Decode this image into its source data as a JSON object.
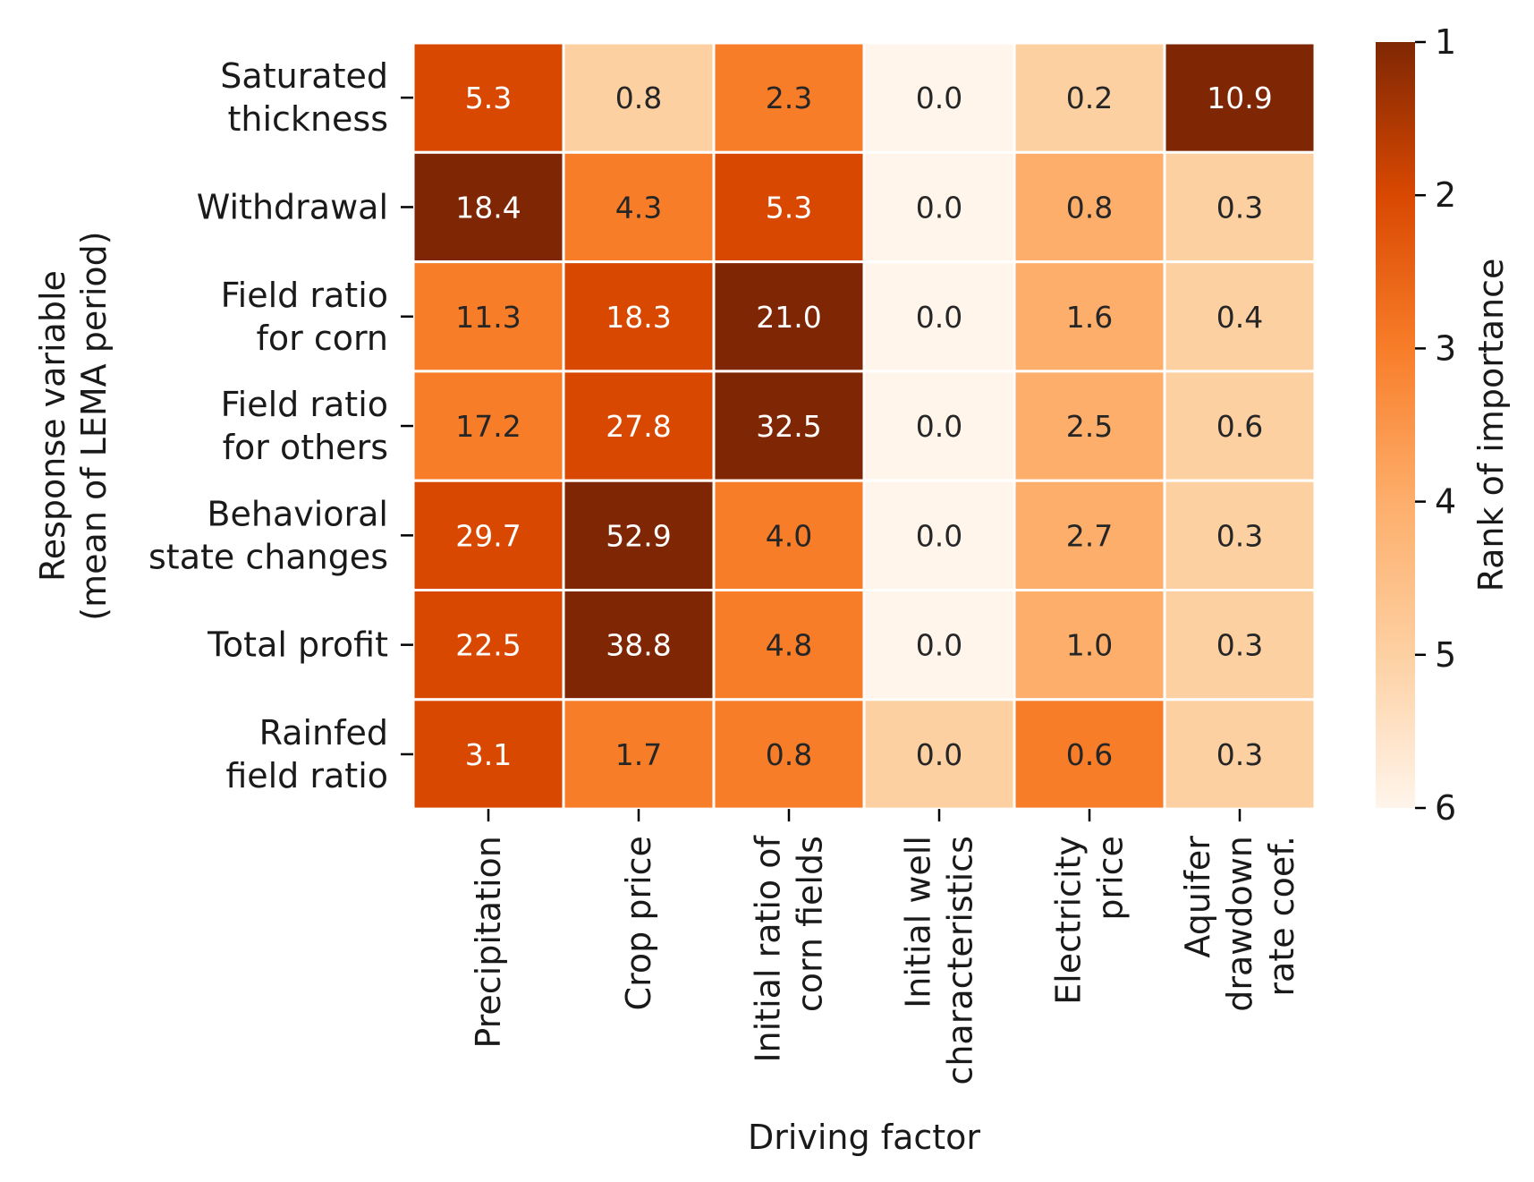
{
  "chart_data": {
    "type": "heatmap",
    "xlabel": "Driving factor",
    "ylabel": [
      "Response variable",
      "(mean of LEMA period)"
    ],
    "columns": [
      [
        "Precipitation"
      ],
      [
        "Crop price"
      ],
      [
        "Initial ratio of",
        "corn fields"
      ],
      [
        "Initial well",
        "characteristics"
      ],
      [
        "Electricity",
        "price"
      ],
      [
        "Aquifer",
        "drawdown",
        "rate coef."
      ]
    ],
    "rows": [
      [
        "Saturated",
        "thickness"
      ],
      [
        "Withdrawal"
      ],
      [
        "Field ratio",
        "for corn"
      ],
      [
        "Field ratio",
        "for others"
      ],
      [
        "Behavioral",
        "state changes"
      ],
      [
        "Total profit"
      ],
      [
        "Rainfed",
        "field ratio"
      ]
    ],
    "values": [
      [
        "5.3",
        "0.8",
        "2.3",
        "0.0",
        "0.2",
        "10.9"
      ],
      [
        "18.4",
        "4.3",
        "5.3",
        "0.0",
        "0.8",
        "0.3"
      ],
      [
        "11.3",
        "18.3",
        "21.0",
        "0.0",
        "1.6",
        "0.4"
      ],
      [
        "17.2",
        "27.8",
        "32.5",
        "0.0",
        "2.5",
        "0.6"
      ],
      [
        "29.7",
        "52.9",
        "4.0",
        "0.0",
        "2.7",
        "0.3"
      ],
      [
        "22.5",
        "38.8",
        "4.8",
        "0.0",
        "1.0",
        "0.3"
      ],
      [
        "3.1",
        "1.7",
        "0.8",
        "0.0",
        "0.6",
        "0.3"
      ]
    ],
    "rank": [
      [
        2,
        5,
        3,
        6,
        5,
        1
      ],
      [
        1,
        3,
        2,
        6,
        4,
        5
      ],
      [
        3,
        2,
        1,
        6,
        4,
        5
      ],
      [
        3,
        2,
        1,
        6,
        4,
        5
      ],
      [
        2,
        1,
        3,
        6,
        4,
        5
      ],
      [
        2,
        1,
        3,
        6,
        4,
        5
      ],
      [
        2,
        3,
        3,
        5,
        3,
        5
      ]
    ],
    "colorbar": {
      "label": "Rank of importance",
      "ticks": [
        "1",
        "2",
        "3",
        "4",
        "5",
        "6"
      ],
      "range": [
        1,
        6
      ],
      "colormap": [
        "#7f2704",
        "#d94801",
        "#f87d29",
        "#fdae6b",
        "#fdd0a2",
        "#fff5eb"
      ]
    }
  }
}
